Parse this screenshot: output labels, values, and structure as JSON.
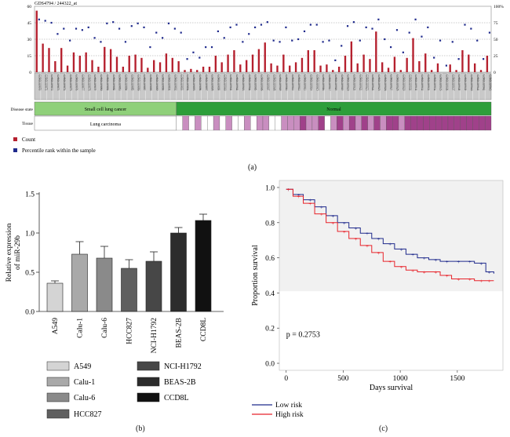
{
  "panel_labels": {
    "a": "(a)",
    "b": "(b)",
    "c": "(c)"
  },
  "chart_data": [
    {
      "type": "bar",
      "title": "GDS4794 / 244322_at",
      "ylim": [
        0,
        60
      ],
      "yticks": [
        0,
        15,
        30,
        45,
        60
      ],
      "y2ticks": [
        "0",
        "25",
        "50",
        "75",
        "100%"
      ],
      "grid": true,
      "legend_position": "bottom-left",
      "series": [
        {
          "name": "Count",
          "color": "#b5202e",
          "values": [
            56,
            26,
            22,
            10,
            22,
            6,
            18,
            15,
            18,
            11,
            5,
            23,
            21,
            14,
            5,
            15,
            16,
            13,
            4,
            11,
            9,
            17,
            13,
            10,
            2,
            3,
            2,
            5,
            5,
            15,
            9,
            16,
            20,
            7,
            11,
            16,
            21,
            27,
            8,
            6,
            16,
            6,
            9,
            13,
            20,
            20,
            6,
            7,
            2,
            5,
            15,
            28,
            8,
            16,
            12,
            37,
            9,
            4,
            14,
            2,
            13,
            31,
            10,
            17,
            2,
            8,
            0,
            7,
            2,
            20,
            16,
            8,
            2,
            15
          ]
        },
        {
          "name": "Percentile rank within the sample",
          "color": "#1f2a8c",
          "values": [
            80,
            78,
            75,
            58,
            66,
            48,
            66,
            64,
            68,
            52,
            46,
            74,
            76,
            66,
            46,
            70,
            74,
            68,
            38,
            60,
            52,
            74,
            66,
            60,
            20,
            30,
            22,
            38,
            38,
            62,
            52,
            68,
            72,
            46,
            58,
            68,
            72,
            76,
            48,
            46,
            68,
            48,
            50,
            62,
            72,
            72,
            46,
            48,
            18,
            40,
            70,
            76,
            48,
            68,
            66,
            80,
            50,
            38,
            64,
            30,
            60,
            80,
            54,
            68,
            22,
            48,
            10,
            46,
            20,
            72,
            66,
            48,
            20,
            60
          ]
        }
      ],
      "samples": [
        "GSM1039870",
        "GSM1039871",
        "GSM1039872",
        "GSM1039873",
        "GSM1039874",
        "GSM1039875",
        "GSM1039876",
        "GSM1039877",
        "GSM1039878",
        "GSM1039879",
        "GSM1039880",
        "GSM1039881",
        "GSM1039882",
        "GSM1039883",
        "GSM1039884",
        "GSM1039885",
        "GSM1039886",
        "GSM1039887",
        "GSM1039888",
        "GSM1039889",
        "GSM1039890",
        "GSM1039891",
        "GSM1039892",
        "GSM1039893",
        "GSM1039894",
        "GSM1039895",
        "GSM1039896",
        "GSM1039897",
        "GSM1039898",
        "GSM1039899",
        "GSM1039900",
        "GSM1039901",
        "GSM1039902",
        "GSM1039903",
        "GSM1039904",
        "GSM1039905",
        "GSM1039906",
        "GSM1039907",
        "GSM1039908",
        "GSM1039909",
        "GSM1039910",
        "GSM1039911",
        "GSM1039912",
        "GSM1039913",
        "GSM1039914",
        "GSM1039915",
        "GSM1039916",
        "GSM1039917",
        "GSM1039918",
        "GSM1039919",
        "GSM1039920",
        "GSM1039921",
        "GSM1039922",
        "GSM1039923",
        "GSM1039924",
        "GSM1039925",
        "GSM1039926",
        "GSM1039927",
        "GSM1039928",
        "GSM1039929",
        "GSM1039930",
        "GSM1039931",
        "GSM1039932",
        "GSM1039933",
        "GSM1039934",
        "GSM1039935",
        "GSM1039936",
        "GSM1039937",
        "GSM1039938",
        "GSM1039939",
        "GSM1039940",
        "GSM1039941",
        "GSM1039942",
        "GSM1039943"
      ],
      "group_split": 23,
      "disease_state": {
        "label": "Disease state",
        "groups": [
          "Small cell lung cancer",
          "Normal"
        ],
        "colors": [
          "#8fd07a",
          "#2d9e3a"
        ]
      },
      "tissue": {
        "label": "Tissue",
        "groups": [
          "Lung carcinoma"
        ],
        "normal_colors": [
          "#ffffff",
          "#c98ec0",
          "#ffffff",
          "#c98ec0",
          "#ffffff",
          "#ffffff",
          "#c98ec0",
          "#ffffff",
          "#c98ec0",
          "#ffffff",
          "#ffffff",
          "#c98ec0",
          "#ffffff",
          "#c98ec0",
          "#c98ec0",
          "#ffffff",
          "#ffffff",
          "#c98ec0",
          "#c98ec0",
          "#c98ec0",
          "#a0418a",
          "#c98ec0",
          "#c98ec0",
          "#a0418a",
          "#ffffff",
          "#c98ec0",
          "#a0418a",
          "#c98ec0",
          "#a0418a",
          "#c98ec0",
          "#a0418a",
          "#c98ec0",
          "#a0418a",
          "#c98ec0",
          "#a0418a",
          "#a0418a",
          "#c98ec0",
          "#a0418a",
          "#a0418a",
          "#a0418a",
          "#a0418a",
          "#a0418a",
          "#a0418a",
          "#a0418a",
          "#a0418a",
          "#a0418a",
          "#a0418a",
          "#a0418a",
          "#a0418a",
          "#a0418a",
          "#a0418a"
        ]
      }
    },
    {
      "type": "bar",
      "ylabel": "Relative expression of miR-29b",
      "ylim": [
        0,
        1.5
      ],
      "yticks": [
        0.0,
        0.5,
        1.0,
        1.5
      ],
      "categories": [
        "A549",
        "Calu-1",
        "Calu-6",
        "HCC827",
        "NCI-H1792",
        "BEAS-2B",
        "CCD8L"
      ],
      "values": [
        0.36,
        0.73,
        0.68,
        0.55,
        0.64,
        1.0,
        1.16
      ],
      "errors": [
        0.03,
        0.16,
        0.15,
        0.11,
        0.12,
        0.07,
        0.08
      ],
      "colors": [
        "#d4d4d4",
        "#a9a9a9",
        "#8a8a8a",
        "#5f5f5f",
        "#474747",
        "#2c2c2c",
        "#111111"
      ],
      "legend_position": "bottom"
    },
    {
      "type": "line",
      "xlabel": "Days survival",
      "ylabel": "Proportion survival",
      "xlim": [
        -60,
        1900
      ],
      "ylim": [
        -0.04,
        1.04
      ],
      "xticks": [
        0,
        500,
        1000,
        1500
      ],
      "yticks": [
        0.0,
        0.2,
        0.4,
        0.6,
        0.8,
        1.0
      ],
      "annotation": "p = 0.2753",
      "legend_position": "bottom-left",
      "series": [
        {
          "name": "Low risk",
          "color": "#1f2a8c",
          "x": [
            0,
            60,
            150,
            250,
            350,
            450,
            550,
            650,
            750,
            850,
            950,
            1050,
            1150,
            1250,
            1350,
            1450,
            1550,
            1650,
            1750,
            1820
          ],
          "y": [
            0.99,
            0.96,
            0.93,
            0.89,
            0.84,
            0.8,
            0.77,
            0.74,
            0.71,
            0.68,
            0.65,
            0.62,
            0.6,
            0.59,
            0.58,
            0.58,
            0.58,
            0.57,
            0.52,
            0.51
          ]
        },
        {
          "name": "High risk",
          "color": "#e8232a",
          "x": [
            0,
            60,
            150,
            250,
            350,
            450,
            550,
            650,
            750,
            850,
            950,
            1050,
            1150,
            1250,
            1350,
            1450,
            1550,
            1650,
            1750,
            1820
          ],
          "y": [
            0.99,
            0.95,
            0.91,
            0.85,
            0.8,
            0.75,
            0.71,
            0.67,
            0.63,
            0.58,
            0.55,
            0.53,
            0.52,
            0.52,
            0.5,
            0.48,
            0.48,
            0.47,
            0.47,
            0.47
          ]
        }
      ]
    }
  ]
}
